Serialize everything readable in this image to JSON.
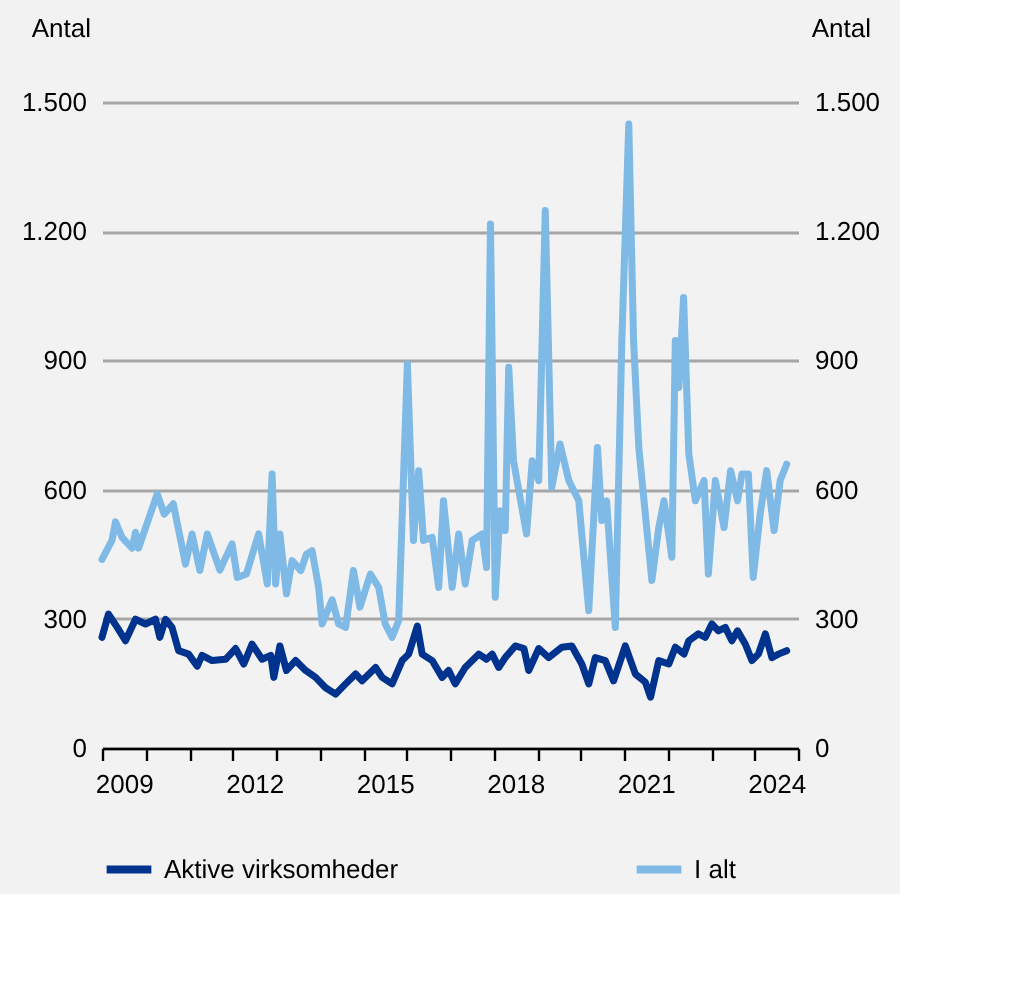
{
  "chart_data": {
    "type": "line",
    "ylabel": "Antal",
    "y2label": "Antal",
    "xlim": [
      2009,
      2025
    ],
    "xticks": [
      {
        "value": 2009,
        "label": null
      },
      {
        "value": 2010,
        "label": null
      },
      {
        "value": 2011,
        "label": null
      },
      {
        "value": 2012,
        "label": null
      },
      {
        "value": 2013,
        "label": null
      },
      {
        "value": 2014,
        "label": null
      },
      {
        "value": 2015,
        "label": null
      },
      {
        "value": 2016,
        "label": null
      },
      {
        "value": 2017,
        "label": null
      },
      {
        "value": 2018,
        "label": null
      },
      {
        "value": 2019,
        "label": null
      },
      {
        "value": 2020,
        "label": null
      },
      {
        "value": 2021,
        "label": null
      },
      {
        "value": 2022,
        "label": null
      },
      {
        "value": 2023,
        "label": null
      },
      {
        "value": 2024,
        "label": null
      },
      {
        "value": 2025,
        "label": null
      },
      {
        "value": 2009.5,
        "label": "2009"
      },
      {
        "value": 2012.5,
        "label": "2012"
      },
      {
        "value": 2015.5,
        "label": "2015"
      },
      {
        "value": 2018.5,
        "label": "2018"
      },
      {
        "value": 2021.5,
        "label": "2021"
      },
      {
        "value": 2024.5,
        "label": "2024"
      }
    ],
    "ylim": [
      0,
      1500
    ],
    "yticks": [
      0,
      {
        "value": 300,
        "label": "300"
      },
      {
        "value": 600,
        "label": "600"
      },
      {
        "value": 900,
        "label": "900"
      },
      {
        "value": 1200,
        "label": "1.200"
      },
      {
        "value": 1500,
        "label": "1.500"
      }
    ],
    "y2lim": [
      0,
      1500
    ],
    "y2ticks": [
      0,
      {
        "value": 300,
        "label": "300"
      },
      {
        "value": 600,
        "label": "600"
      },
      {
        "value": 900,
        "label": "900"
      },
      {
        "value": 1200,
        "label": "1.200"
      },
      {
        "value": 1500,
        "label": "1.500"
      }
    ],
    "grid": "y",
    "legend": "bottom",
    "marker": "none",
    "line_style": "solid",
    "series": [
      {
        "name": "Aktive virksomheder",
        "color": "#00338d",
        "x": [
          2009.0,
          2009.15,
          2009.35,
          2009.54,
          2009.77,
          2010.0,
          2010.23,
          2010.33,
          2010.46,
          2010.61,
          2010.76,
          2010.99,
          2011.19,
          2011.3,
          2011.53,
          2011.84,
          2012.07,
          2012.26,
          2012.45,
          2012.68,
          2012.88,
          2012.95,
          2013.09,
          2013.24,
          2013.45,
          2013.68,
          2013.91,
          2014.14,
          2014.37,
          2014.6,
          2014.83,
          2014.98,
          2015.29,
          2015.44,
          2015.67,
          2015.9,
          2016.05,
          2016.25,
          2016.36,
          2016.59,
          2016.82,
          2016.97,
          2017.12,
          2017.35,
          2017.66,
          2017.84,
          2017.97,
          2018.12,
          2018.27,
          2018.5,
          2018.7,
          2018.81,
          2019.04,
          2019.27,
          2019.57,
          2019.8,
          2020.03,
          2020.19,
          2020.34,
          2020.57,
          2020.76,
          2021.03,
          2021.26,
          2021.49,
          2021.61,
          2021.8,
          2022.03,
          2022.18,
          2022.38,
          2022.49,
          2022.71,
          2022.87,
          2023.02,
          2023.17,
          2023.33,
          2023.48,
          2023.61,
          2023.79,
          2023.94,
          2024.09,
          2024.25,
          2024.4,
          2024.55,
          2024.74
        ],
        "values": [
          257,
          311,
          280,
          249,
          299,
          288,
          299,
          257,
          299,
          280,
          226,
          218,
          190,
          215,
          203,
          206,
          231,
          195,
          241,
          206,
          215,
          164,
          237,
          180,
          203,
          180,
          164,
          140,
          125,
          149,
          172,
          156,
          187,
          164,
          149,
          203,
          218,
          283,
          218,
          203,
          164,
          180,
          149,
          187,
          218,
          206,
          218,
          187,
          210,
          237,
          231,
          180,
          231,
          210,
          234,
          237,
          195,
          149,
          210,
          203,
          156,
          237,
          172,
          153,
          118,
          203,
          195,
          234,
          218,
          249,
          265,
          257,
          288,
          272,
          280,
          249,
          272,
          241,
          203,
          218,
          265,
          210,
          218,
          226
        ]
      },
      {
        "name": "I alt",
        "color": "#7fb9e6",
        "axis": "y2",
        "x": [
          2009.0,
          2009.23,
          2009.31,
          2009.46,
          2009.69,
          2009.77,
          2009.84,
          2010.27,
          2010.43,
          2010.64,
          2010.92,
          2011.07,
          2011.25,
          2011.42,
          2011.71,
          2011.99,
          2012.11,
          2012.32,
          2012.6,
          2012.8,
          2012.91,
          2012.99,
          2013.09,
          2013.24,
          2013.37,
          2013.57,
          2013.7,
          2013.83,
          2013.98,
          2014.06,
          2014.29,
          2014.44,
          2014.6,
          2014.78,
          2014.93,
          2015.17,
          2015.36,
          2015.51,
          2015.67,
          2015.82,
          2016.02,
          2016.16,
          2016.28,
          2016.39,
          2016.59,
          2016.74,
          2016.85,
          2017.05,
          2017.2,
          2017.35,
          2017.51,
          2017.74,
          2017.84,
          2017.93,
          2018.04,
          2018.15,
          2018.27,
          2018.35,
          2018.46,
          2018.76,
          2018.89,
          2019.04,
          2019.19,
          2019.34,
          2019.53,
          2019.73,
          2019.96,
          2020.19,
          2020.39,
          2020.49,
          2020.6,
          2020.8,
          2020.95,
          2021.11,
          2021.22,
          2021.34,
          2021.64,
          2021.8,
          2021.92,
          2022.1,
          2022.18,
          2022.26,
          2022.37,
          2022.49,
          2022.64,
          2022.84,
          2022.94,
          2023.1,
          2023.3,
          2023.45,
          2023.61,
          2023.71,
          2023.86,
          2023.97,
          2024.13,
          2024.28,
          2024.45,
          2024.59,
          2024.74
        ],
        "values": [
          438,
          482,
          525,
          489,
          464,
          501,
          464,
          590,
          543,
          567,
          427,
          497,
          412,
          497,
          413,
          474,
          396,
          404,
          497,
          381,
          636,
          381,
          497,
          358,
          435,
          412,
          450,
          458,
          373,
          288,
          344,
          288,
          280,
          412,
          327,
          404,
          373,
          288,
          257,
          296,
          892,
          482,
          644,
          482,
          489,
          373,
          574,
          373,
          497,
          381,
          482,
          497,
          419,
          1217,
          350,
          551,
          505,
          884,
          667,
          497,
          667,
          621,
          1248,
          605,
          706,
          621,
          574,
          319,
          698,
          528,
          574,
          280,
          946,
          1449,
          946,
          698,
          389,
          512,
          574,
          443,
          946,
          837,
          1046,
          683,
          574,
          621,
          404,
          621,
          512,
          644,
          574,
          636,
          636,
          396,
          543,
          644,
          505,
          621,
          659
        ]
      }
    ]
  }
}
